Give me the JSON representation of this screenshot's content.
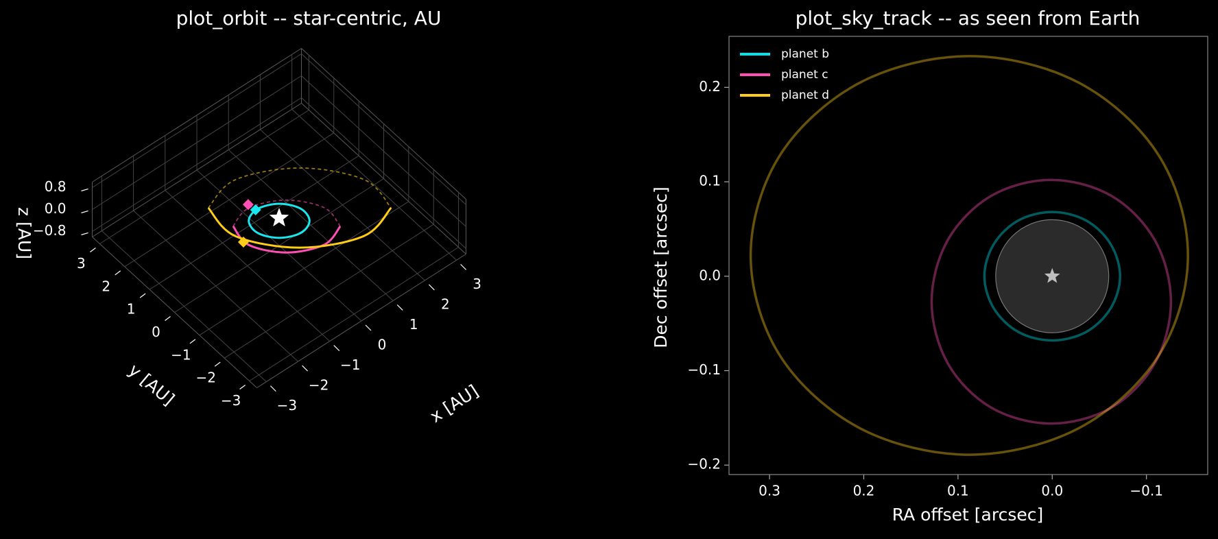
{
  "chart_data": [
    {
      "type": "orbit3d",
      "title": "plot_orbit -- star-centric, AU",
      "x_label": "x [AU]",
      "y_label": "y [AU]",
      "z_label": "z [AU]",
      "xlim": [
        -3.3,
        3.3
      ],
      "ylim": [
        -3.3,
        3.3
      ],
      "zlim": [
        -1,
        1
      ],
      "xticks": [
        {
          "value": -3,
          "label": "−3"
        },
        {
          "value": -2,
          "label": "−2"
        },
        {
          "value": -1,
          "label": "−1"
        },
        0,
        1,
        2,
        3
      ],
      "yticks": [
        {
          "value": -3,
          "label": "−3"
        },
        {
          "value": -2,
          "label": "−2"
        },
        {
          "value": -1,
          "label": "−1"
        },
        0,
        1,
        2,
        3
      ],
      "zticks": [
        {
          "value": -0.8,
          "label": "−0.8"
        },
        {
          "value": 0,
          "label": "0.0"
        },
        0.8
      ],
      "grid": true,
      "series": [
        {
          "color": "#19e6ee",
          "linestyle": "solid",
          "closed": true,
          "x": [
            0.51,
            0.1,
            -0.4,
            -0.7,
            -0.62,
            -0.21,
            0.29,
            0.59
          ],
          "y": [
            -0.57,
            -0.74,
            -0.51,
            -0.03,
            0.43,
            0.59,
            0.37,
            -0.11
          ],
          "z": [
            0,
            0,
            0,
            0,
            0,
            0,
            0,
            0
          ]
        },
        {
          "color": "#ff4fb4",
          "linestyle": "solid",
          "x": [
            0.97,
            0.3,
            -0.56,
            -1.11,
            -1.02
          ],
          "y": [
            -1.22,
            -1.43,
            -1.01,
            -0.19,
            0.55
          ],
          "z": [
            0,
            0,
            0,
            0,
            0
          ]
        },
        {
          "color": "#ff4fb4",
          "linestyle": "dashed",
          "x": [
            -1.02,
            -0.36,
            0.5,
            1.05,
            0.97
          ],
          "y": [
            0.55,
            0.76,
            0.34,
            -0.48,
            -1.22
          ],
          "z": [
            0,
            0,
            0,
            0,
            0
          ]
        },
        {
          "color": "#ffcc1a",
          "linestyle": "solid",
          "x": [
            2.29,
            1.22,
            -0.22,
            -1.18,
            -1.11
          ],
          "y": [
            -1.58,
            -1.86,
            -1.1,
            0.26,
            1.43
          ],
          "z": [
            0,
            0,
            0,
            0,
            0
          ]
        },
        {
          "color": "#ffcc1a",
          "linestyle": "dashed",
          "x": [
            -1.11,
            -0.04,
            1.4,
            2.36,
            2.29
          ],
          "y": [
            1.43,
            1.71,
            0.95,
            -0.41,
            -1.58
          ],
          "z": [
            0,
            0,
            0,
            0,
            0
          ]
        }
      ],
      "markers": [
        {
          "marker": "star",
          "color": "#ffffff",
          "x": 0,
          "y": 0,
          "z": 0
        },
        {
          "marker": "diamond",
          "color": "#19e6ee",
          "x": -0.27,
          "y": 0.6,
          "z": 0
        },
        {
          "marker": "diamond",
          "color": "#ff4fb4",
          "x": -0.3,
          "y": 0.86,
          "z": 0
        },
        {
          "marker": "diamond",
          "color": "#ffcc1a",
          "x": -1.15,
          "y": -0.03,
          "z": 0
        }
      ]
    },
    {
      "type": "sky_track",
      "title": "plot_sky_track -- as seen from Earth",
      "x_label": "RA offset [arcsec]",
      "y_label": "Dec offset [arcsec]",
      "xlim": [
        0.343,
        -0.165
      ],
      "ylim": [
        -0.21,
        0.254
      ],
      "xticks": [
        0.3,
        0.2,
        0.1,
        {
          "value": 0,
          "label": "0.0"
        },
        {
          "value": -0.1,
          "label": "−0.1"
        }
      ],
      "yticks": [
        {
          "value": -0.2,
          "label": "−0.2"
        },
        {
          "value": -0.1,
          "label": "−0.1"
        },
        {
          "value": 0,
          "label": "0.0"
        },
        0.1,
        0.2
      ],
      "grid": false,
      "legend": "upper left",
      "alpha": 0.4,
      "star_disk": {
        "x": 0,
        "y": 0,
        "radius": 0.06,
        "color": "#2b2b2b"
      },
      "star": {
        "x": 0,
        "y": 0,
        "color": "#c0c0c0"
      },
      "series": [
        {
          "name": "planet b",
          "color": "#00e5ee",
          "closed": true,
          "x": [
            0.072,
            0.062,
            0.036,
            0,
            -0.036,
            -0.062,
            -0.072,
            -0.062,
            -0.036,
            0,
            0.036,
            0.062
          ],
          "y": [
            0,
            0.034,
            0.059,
            0.068,
            0.059,
            0.034,
            0,
            -0.034,
            -0.059,
            -0.068,
            -0.059,
            -0.034
          ]
        },
        {
          "name": "planet c",
          "color": "#ff4fb4",
          "closed": true,
          "x": [
            0.128,
            0.111,
            0.065,
            0.001,
            -0.063,
            -0.109,
            -0.126,
            -0.109,
            -0.063,
            0.001,
            0.065,
            0.111
          ],
          "y": [
            -0.027,
            0.038,
            0.085,
            0.102,
            0.085,
            0.038,
            -0.027,
            -0.092,
            -0.139,
            -0.156,
            -0.139,
            -0.092
          ]
        },
        {
          "name": "planet d",
          "color": "#ffcc1a",
          "closed": true,
          "x": [
            0.32,
            0.289,
            0.204,
            0.088,
            -0.028,
            -0.113,
            -0.144,
            -0.113,
            -0.028,
            0.088,
            0.204,
            0.289
          ],
          "y": [
            0.022,
            0.128,
            0.205,
            0.233,
            0.205,
            0.128,
            0.022,
            -0.084,
            -0.161,
            -0.189,
            -0.161,
            -0.084
          ]
        }
      ]
    }
  ]
}
